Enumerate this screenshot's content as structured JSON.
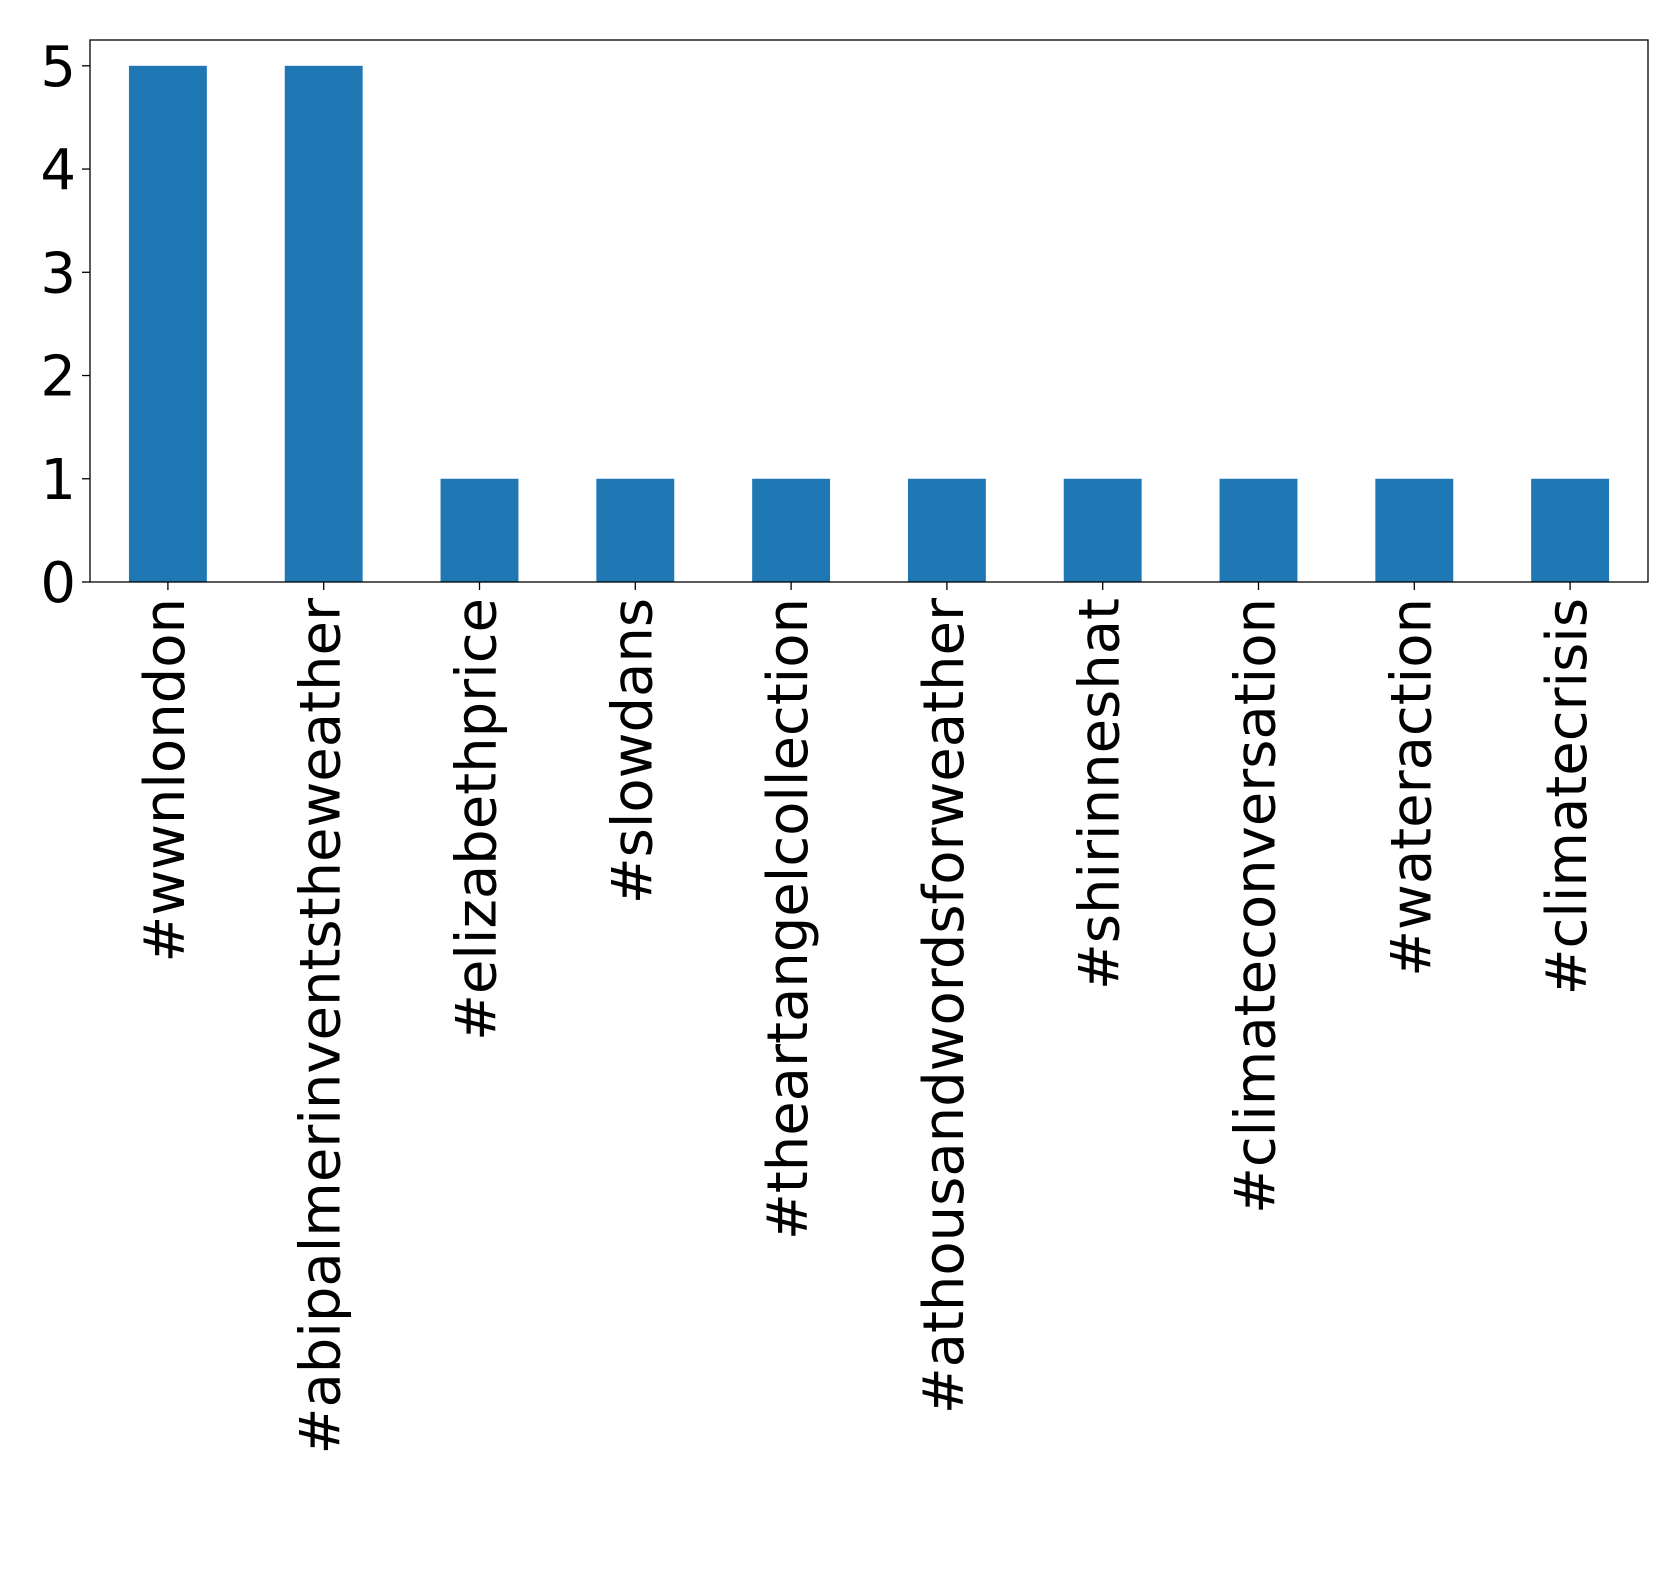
{
  "chart_data": {
    "type": "bar",
    "title": "",
    "xlabel": "",
    "ylabel": "",
    "categories": [
      "#wwnlondon",
      "#abipalmerinventstheweather",
      "#elizabethprice",
      "#slowdans",
      "#theartangelcollection",
      "#athousandwordsforweather",
      "#shirinneshat",
      "#climateconversation",
      "#wateraction",
      "#climatecrisis"
    ],
    "values": [
      5,
      5,
      1,
      1,
      1,
      1,
      1,
      1,
      1,
      1
    ],
    "ylim": [
      0,
      5.25
    ],
    "yticks": [
      0,
      1,
      2,
      3,
      4,
      5
    ],
    "grid": false,
    "legend": "none",
    "bar_color": "#1f77b4"
  }
}
